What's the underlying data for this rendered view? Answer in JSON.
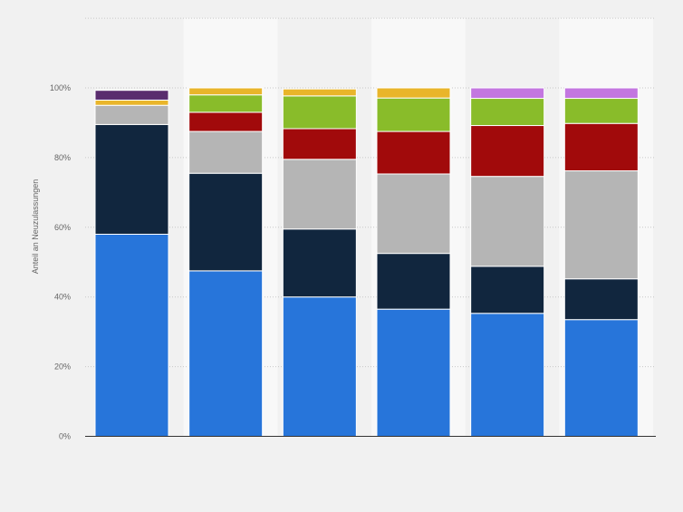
{
  "chart_data": {
    "type": "bar",
    "stacked": true,
    "ylabel": "Anteil an Neuzulassungen",
    "ylim": [
      0,
      100
    ],
    "yticks": [
      "0%",
      "20%",
      "40%",
      "60%",
      "80%",
      "100%"
    ],
    "grid": true,
    "legend": "none",
    "categories": [
      "",
      "",
      "",
      "",
      "",
      ""
    ],
    "series": [
      {
        "color": "#2775da",
        "values": [
          58.0,
          47.5,
          40.0,
          36.5,
          35.3,
          33.5
        ]
      },
      {
        "color": "#11263e",
        "values": [
          31.5,
          28.0,
          19.5,
          16.0,
          13.5,
          11.7
        ]
      },
      {
        "color": "#b5b5b5",
        "values": [
          5.5,
          12.0,
          20.0,
          22.8,
          25.8,
          31.0
        ]
      },
      {
        "color": "#a10a0b",
        "values": [
          0,
          5.5,
          8.8,
          12.2,
          14.6,
          13.6
        ]
      },
      {
        "color": "#89bc2a",
        "values": [
          0,
          5.0,
          9.4,
          9.6,
          7.8,
          7.2
        ]
      },
      {
        "color": "#e9b52a",
        "values": [
          1.5,
          2.0,
          2.0,
          2.9,
          0,
          0
        ]
      },
      {
        "color": "#c377e0",
        "values": [
          0,
          0,
          0,
          0,
          3.0,
          3.0
        ]
      },
      {
        "color": "#5a2d6e",
        "values": [
          2.8,
          0,
          0,
          0,
          0,
          0
        ]
      }
    ]
  }
}
